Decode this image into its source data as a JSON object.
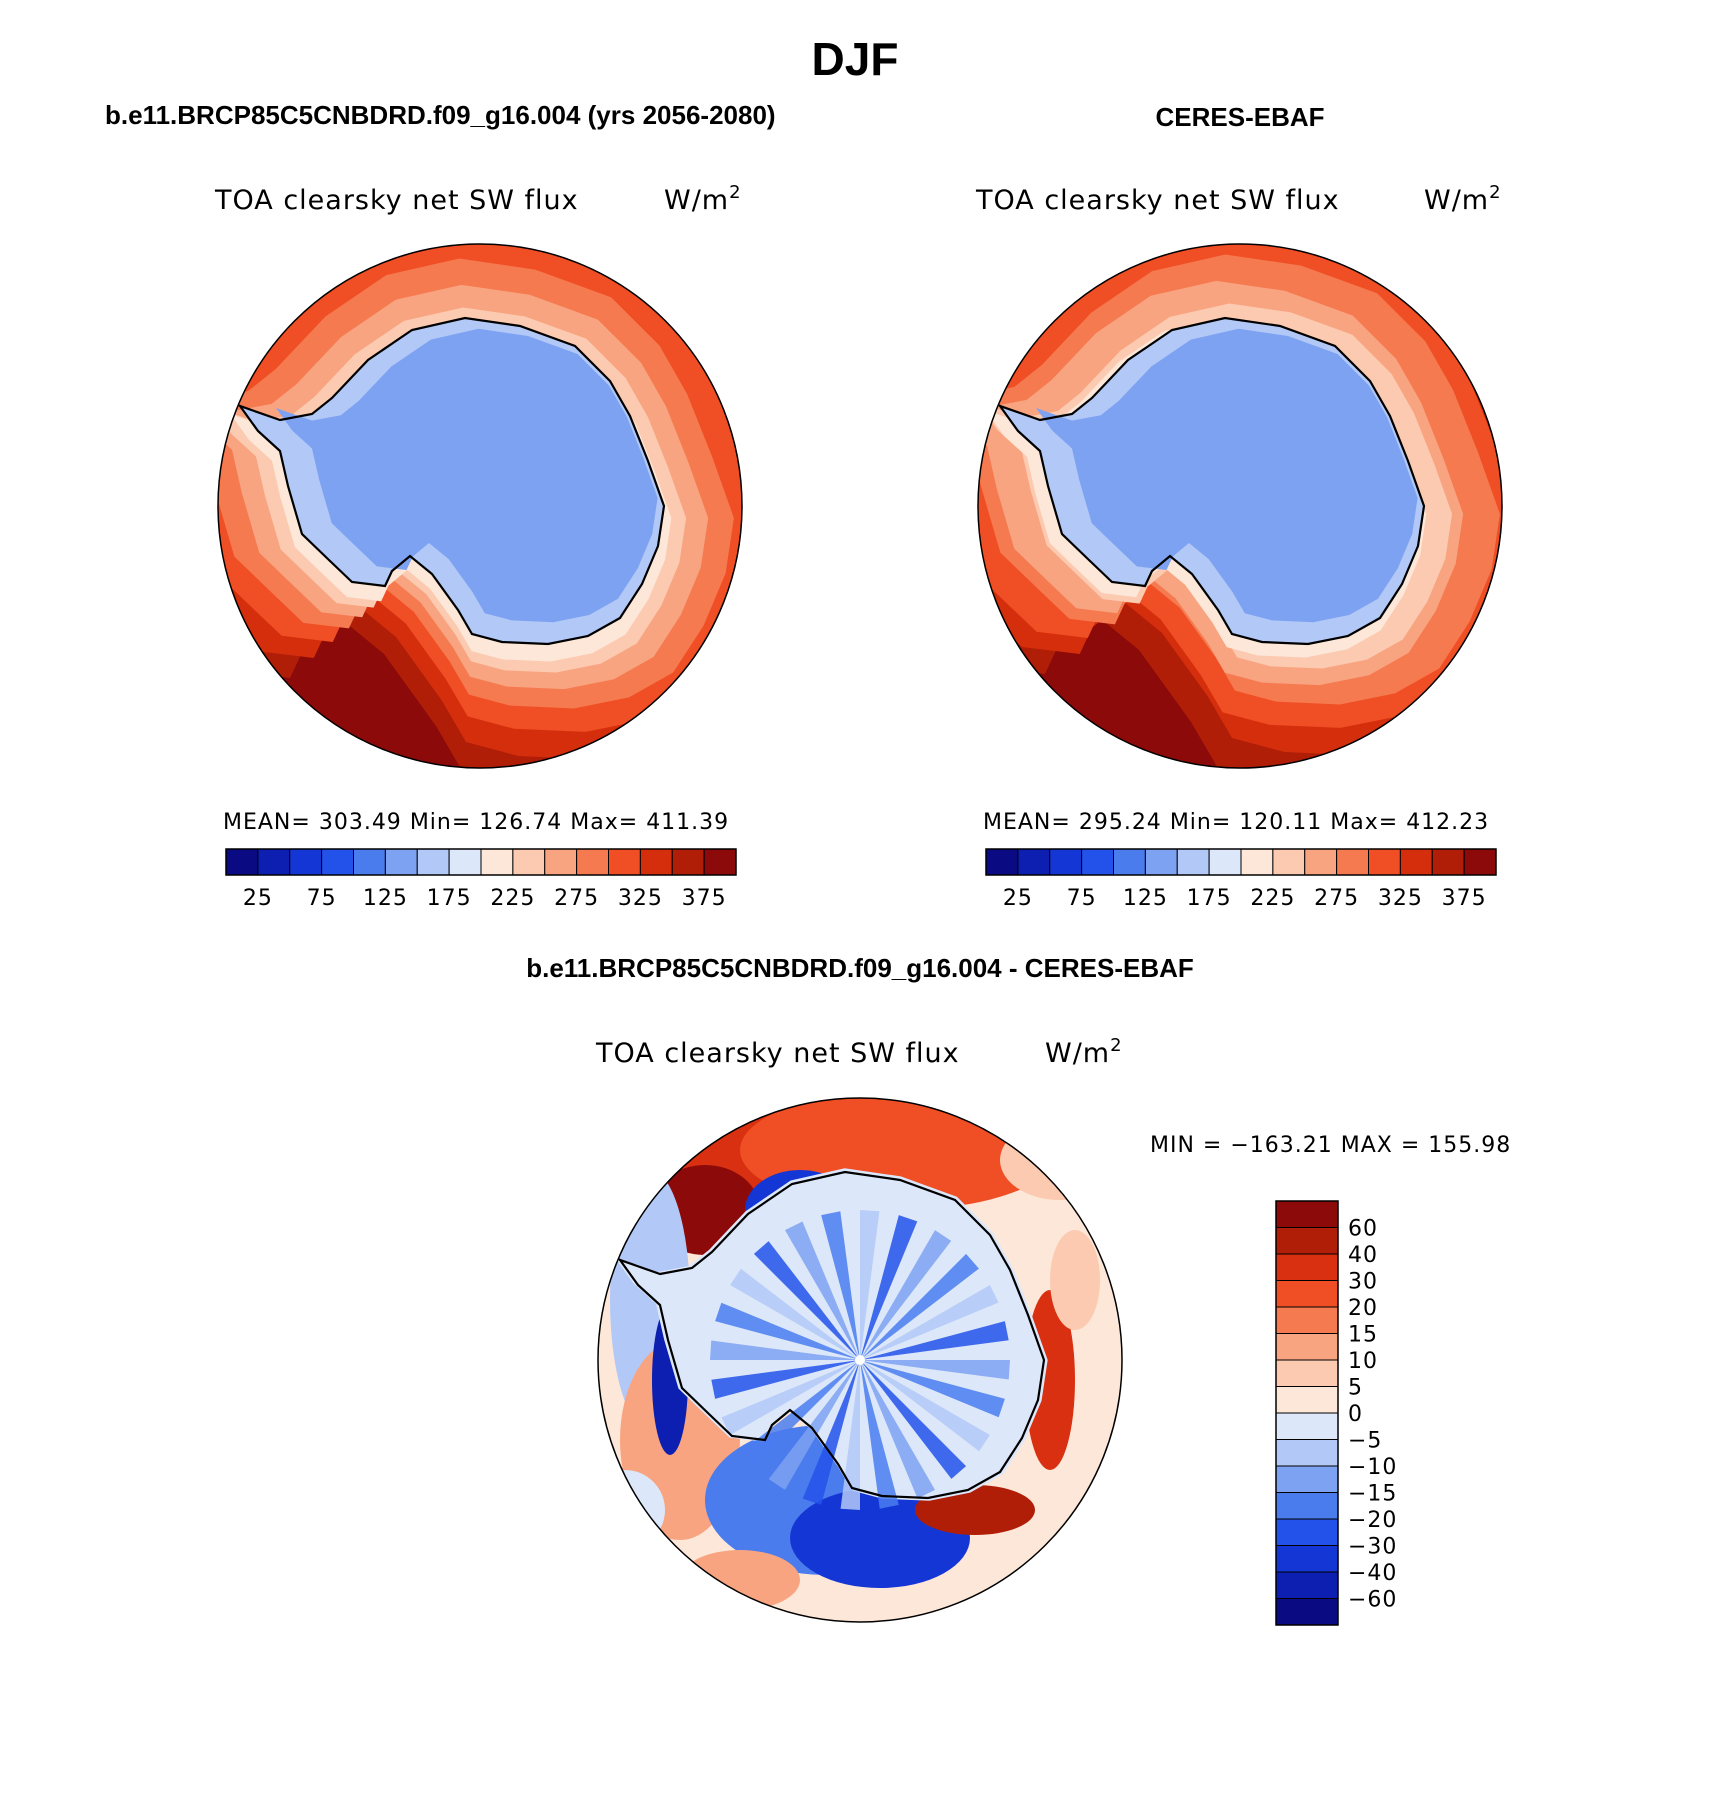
{
  "figure_title": "DJF",
  "colors": {
    "abs_palette": [
      "#0a0a82",
      "#0c1fb0",
      "#1436d4",
      "#2352ea",
      "#4a7cee",
      "#7ea2f2",
      "#b2c8f6",
      "#dce8fa",
      "#fde7d8",
      "#fccab0",
      "#f8a480",
      "#f57a50",
      "#f04e24",
      "#d42e0c",
      "#b01e08",
      "#8c0a0a"
    ],
    "diff_palette": [
      "#8c0a0a",
      "#b01e08",
      "#d83010",
      "#f04e24",
      "#f57a50",
      "#f8a480",
      "#fccab0",
      "#fde7d8",
      "#dce8fa",
      "#b2c8f6",
      "#7ea2f2",
      "#4a7cee",
      "#2352ea",
      "#1436d4",
      "#0c1fb0",
      "#0a0a82"
    ],
    "ice": "#7ea2f2",
    "coast": "#000000"
  },
  "panels": {
    "model": {
      "title": "b.e11.BRCP85C5CNBDRD.f09_g16.004 (yrs 2056-2080)",
      "field": "TOA clearsky net SW flux",
      "units_base": "W/m",
      "units_exp": "2",
      "stats": {
        "mean_label": "MEAN=",
        "mean": "303.49",
        "min_label": "Min=",
        "min": "126.74",
        "max_label": "Max=",
        "max": "411.39"
      }
    },
    "obs": {
      "title": "CERES-EBAF",
      "field": "TOA clearsky net SW flux",
      "units_base": "W/m",
      "units_exp": "2",
      "stats": {
        "mean_label": "MEAN=",
        "mean": "295.24",
        "min_label": "Min=",
        "min": "120.11",
        "max_label": "Max=",
        "max": "412.23"
      }
    },
    "diff": {
      "title": "b.e11.BRCP85C5CNBDRD.f09_g16.004 - CERES-EBAF",
      "field": "TOA clearsky net SW flux",
      "units_base": "W/m",
      "units_exp": "2",
      "stats": {
        "min_label": "MIN =",
        "min": "−163.21",
        "max_label": "MAX =",
        "max": "155.98"
      }
    }
  },
  "chart_data": [
    {
      "type": "heatmap",
      "projection": "south-polar-stereographic",
      "title": "b.e11.BRCP85C5CNBDRD.f09_g16.004 (yrs 2056-2080)",
      "variable": "TOA clearsky net SW flux",
      "units": "W/m2",
      "colorbar_ticks": [
        "25",
        "75",
        "125",
        "175",
        "225",
        "275",
        "325",
        "375"
      ],
      "contour_levels": [
        25,
        50,
        75,
        100,
        125,
        150,
        175,
        200,
        225,
        250,
        275,
        300,
        325,
        350,
        375
      ],
      "mean": 303.49,
      "min": 126.74,
      "max": 411.39
    },
    {
      "type": "heatmap",
      "projection": "south-polar-stereographic",
      "title": "CERES-EBAF",
      "variable": "TOA clearsky net SW flux",
      "units": "W/m2",
      "colorbar_ticks": [
        "25",
        "75",
        "125",
        "175",
        "225",
        "275",
        "325",
        "375"
      ],
      "contour_levels": [
        25,
        50,
        75,
        100,
        125,
        150,
        175,
        200,
        225,
        250,
        275,
        300,
        325,
        350,
        375
      ],
      "mean": 295.24,
      "min": 120.11,
      "max": 412.23
    },
    {
      "type": "heatmap",
      "projection": "south-polar-stereographic",
      "title": "b.e11.BRCP85C5CNBDRD.f09_g16.004 - CERES-EBAF",
      "variable": "TOA clearsky net SW flux",
      "units": "W/m2",
      "colorbar_ticks": [
        "60",
        "40",
        "30",
        "20",
        "15",
        "10",
        "5",
        "0",
        "−5",
        "−10",
        "−15",
        "−20",
        "−30",
        "−40",
        "−60"
      ],
      "min": -163.21,
      "max": 155.98
    }
  ]
}
